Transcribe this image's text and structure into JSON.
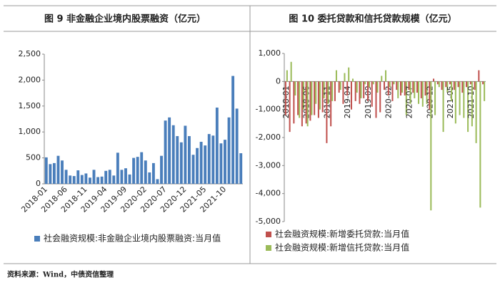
{
  "chart_data": [
    {
      "type": "bar",
      "title": "图 9  非金融企业境内股票融资（亿元）",
      "categories": [
        "2018-01",
        null,
        null,
        null,
        null,
        "2018-06",
        null,
        null,
        null,
        null,
        "2018-11",
        null,
        null,
        null,
        null,
        "2019-04",
        null,
        null,
        null,
        null,
        "2019-09",
        null,
        null,
        null,
        null,
        "2020-02",
        null,
        null,
        null,
        null,
        "2020-07",
        null,
        null,
        null,
        null,
        "2020-12",
        null,
        null,
        null,
        null,
        "2021-05",
        null,
        null,
        null,
        null,
        "2021-10",
        null,
        null,
        null,
        null
      ],
      "series": [
        {
          "name": "社会融资规模:非金融企业境内股票融资:当月值",
          "color": "#4a7ebb",
          "values": [
            510,
            380,
            400,
            540,
            450,
            270,
            160,
            150,
            260,
            170,
            200,
            120,
            270,
            130,
            140,
            250,
            270,
            160,
            600,
            270,
            300,
            180,
            500,
            520,
            610,
            450,
            220,
            400,
            90,
            540,
            1220,
            1280,
            1130,
            920,
            800,
            1120,
            920,
            560,
            690,
            810,
            740,
            960,
            930,
            1470,
            780,
            850,
            1280,
            2080,
            1450,
            590
          ]
        }
      ],
      "ylim": [
        0,
        2500
      ],
      "yticks": [
        0,
        500,
        {
          "value": 1000,
          "label": "1,000"
        },
        {
          "value": 1500,
          "label": "1,500"
        },
        {
          "value": 2000,
          "label": "2,000"
        },
        {
          "value": 2500,
          "label": "2,500"
        }
      ]
    },
    {
      "type": "bar",
      "title": "图 10 委托贷款和信托贷款规模（亿元）",
      "categories": [
        "2018-01",
        null,
        null,
        null,
        null,
        "2018-06",
        null,
        null,
        null,
        null,
        "2018-11",
        null,
        null,
        null,
        null,
        "2019-04",
        null,
        null,
        null,
        null,
        "2019-09",
        null,
        null,
        null,
        null,
        "2020-02",
        null,
        null,
        null,
        null,
        "2020-07",
        null,
        null,
        null,
        null,
        "2020-12",
        null,
        null,
        null,
        null,
        "2021-05",
        null,
        null,
        null,
        null,
        "2021-10",
        null,
        null,
        null
      ],
      "series": [
        {
          "name": "社会融资规模:新增委托贷款:当月值",
          "color": "#c0504d",
          "values": [
            -1200,
            -1800,
            -1500,
            -1200,
            -1600,
            -1500,
            -1400,
            -1200,
            -1300,
            -1100,
            -2200,
            -1600,
            -700,
            -400,
            -800,
            -500,
            -1000,
            -700,
            -800,
            -600,
            -700,
            -900,
            -1300,
            -1100,
            -300,
            -500,
            -700,
            -300,
            -500,
            -500,
            -300,
            -400,
            -400,
            -600,
            -500,
            -1000,
            100,
            -100,
            -300,
            -200,
            -100,
            -300,
            -200,
            -400,
            -200,
            -100,
            -300,
            400,
            -100
          ]
        },
        {
          "name": "社会融资规模:新增信托贷款:当月值",
          "color": "#9bbb59",
          "values": [
            400,
            700,
            -500,
            -1300,
            -1000,
            -1600,
            -1200,
            -800,
            -1000,
            -600,
            -800,
            -700,
            400,
            -300,
            300,
            500,
            100,
            -400,
            -600,
            -100,
            -200,
            -100,
            -400,
            200,
            400,
            -200,
            -100,
            -600,
            -400,
            -1200,
            -800,
            -600,
            -800,
            -900,
            -800,
            -4600,
            -1200,
            -200,
            -1800,
            -400,
            -700,
            -1500,
            -1200,
            -1300,
            -1800,
            -1600,
            -2200,
            -4500,
            -700
          ]
        }
      ],
      "ylim": [
        -5000,
        1000
      ],
      "yticks": [
        {
          "value": 1000,
          "label": "1,000"
        },
        0,
        {
          "value": -1000,
          "label": "-1,000"
        },
        {
          "value": -2000,
          "label": "-2,000"
        },
        {
          "value": -3000,
          "label": "-3,000"
        },
        {
          "value": -4000,
          "label": "-4,000"
        },
        {
          "value": -5000,
          "label": "-5,000"
        }
      ]
    }
  ],
  "source": "资料来源：Wind，中债资信整理"
}
